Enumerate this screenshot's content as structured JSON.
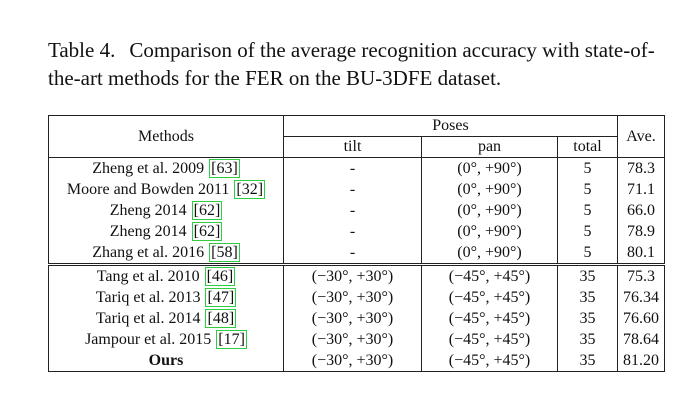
{
  "caption": {
    "label": "Table 4.",
    "text": "Comparison of the average recognition accuracy with state-of-the-art methods for the FER on the BU-3DFE dataset."
  },
  "table": {
    "headers": {
      "methods": "Methods",
      "poses": "Poses",
      "tilt": "tilt",
      "pan": "pan",
      "total": "total",
      "ave": "Ave."
    },
    "groups": [
      {
        "rows": [
          {
            "method": "Zheng et al. 2009",
            "ref": "[63]",
            "tilt": "-",
            "pan": "(0°, +90°)",
            "total": "5",
            "ave": "78.3"
          },
          {
            "method": "Moore and Bowden 2011",
            "ref": "[32]",
            "tilt": "-",
            "pan": "(0°, +90°)",
            "total": "5",
            "ave": "71.1"
          },
          {
            "method": "Zheng 2014",
            "ref": "[62]",
            "tilt": "-",
            "pan": "(0°, +90°)",
            "total": "5",
            "ave": "66.0"
          },
          {
            "method": "Zheng 2014",
            "ref": "[62]",
            "tilt": "-",
            "pan": "(0°, +90°)",
            "total": "5",
            "ave": "78.9"
          },
          {
            "method": "Zhang et al. 2016",
            "ref": "[58]",
            "tilt": "-",
            "pan": "(0°, +90°)",
            "total": "5",
            "ave": "80.1"
          }
        ]
      },
      {
        "rows": [
          {
            "method": "Tang et al. 2010",
            "ref": "[46]",
            "tilt": "(−30°, +30°)",
            "pan": "(−45°, +45°)",
            "total": "35",
            "ave": "75.3"
          },
          {
            "method": "Tariq et al. 2013",
            "ref": "[47]",
            "tilt": "(−30°, +30°)",
            "pan": "(−45°, +45°)",
            "total": "35",
            "ave": "76.34"
          },
          {
            "method": "Tariq et al. 2014",
            "ref": "[48]",
            "tilt": "(−30°, +30°)",
            "pan": "(−45°, +45°)",
            "total": "35",
            "ave": "76.60"
          },
          {
            "method": "Jampour et al. 2015",
            "ref": "[17]",
            "tilt": "(−30°, +30°)",
            "pan": "(−45°, +45°)",
            "total": "35",
            "ave": "78.64"
          },
          {
            "method": "Ours",
            "tilt": "(−30°, +30°)",
            "pan": "(−45°, +45°)",
            "total": "35",
            "ave": "81.20"
          }
        ]
      }
    ]
  }
}
